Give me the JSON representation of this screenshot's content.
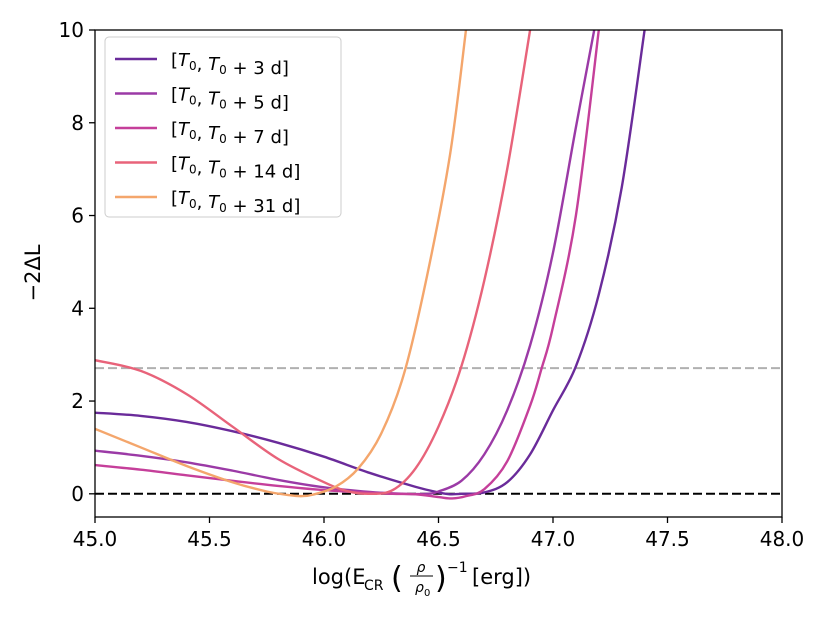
{
  "chart_data": {
    "type": "line",
    "title": "",
    "xlabel_parts": {
      "prefix": "log(E",
      "subscript": "CR",
      "frac_num": "ρ",
      "frac_den": "ρ",
      "frac_den_sub": "0",
      "exponent": "−1",
      "suffix": "[erg])"
    },
    "ylabel": "−2ΔL",
    "xlim": [
      45.0,
      48.0
    ],
    "ylim": [
      -0.5,
      10.0
    ],
    "xticks": [
      45.0,
      45.5,
      46.0,
      46.5,
      47.0,
      47.5,
      48.0
    ],
    "xtick_labels": [
      "45.0",
      "45.5",
      "46.0",
      "46.5",
      "47.0",
      "47.5",
      "48.0"
    ],
    "yticks": [
      0,
      2,
      4,
      6,
      8,
      10
    ],
    "ytick_labels": [
      "0",
      "2",
      "4",
      "6",
      "8",
      "10"
    ],
    "grid": false,
    "legend_position": "top-left",
    "reference_lines": [
      {
        "name": "zero",
        "y": 0,
        "color": "#000000",
        "style": "dashed"
      },
      {
        "name": "threshold",
        "y": 2.71,
        "color": "#b0b0b0",
        "style": "dashed"
      }
    ],
    "series": [
      {
        "name": "[T0, T0 + 3 d]",
        "legend": {
          "t": "T",
          "sub": "0",
          "rest": " + 3 d]"
        },
        "color": "#6a2b9a",
        "points": [
          [
            45.0,
            1.75
          ],
          [
            45.2,
            1.68
          ],
          [
            45.4,
            1.55
          ],
          [
            45.6,
            1.35
          ],
          [
            45.8,
            1.1
          ],
          [
            46.0,
            0.8
          ],
          [
            46.2,
            0.45
          ],
          [
            46.4,
            0.15
          ],
          [
            46.5,
            0.03
          ],
          [
            46.55,
            -0.01
          ],
          [
            46.6,
            0.0
          ],
          [
            46.7,
            0.03
          ],
          [
            46.8,
            0.25
          ],
          [
            46.9,
            0.85
          ],
          [
            47.0,
            1.8
          ],
          [
            47.1,
            2.75
          ],
          [
            47.2,
            4.3
          ],
          [
            47.3,
            6.6
          ],
          [
            47.4,
            10.0
          ]
        ]
      },
      {
        "name": "[T0, T0 + 5 d]",
        "legend": {
          "t": "T",
          "sub": "0",
          "rest": " + 5 d]"
        },
        "color": "#9b3aa6",
        "points": [
          [
            45.0,
            0.93
          ],
          [
            45.2,
            0.82
          ],
          [
            45.4,
            0.68
          ],
          [
            45.6,
            0.5
          ],
          [
            45.8,
            0.3
          ],
          [
            46.0,
            0.14
          ],
          [
            46.2,
            0.04
          ],
          [
            46.35,
            0.0
          ],
          [
            46.45,
            0.0
          ],
          [
            46.5,
            0.05
          ],
          [
            46.6,
            0.28
          ],
          [
            46.7,
            0.85
          ],
          [
            46.8,
            1.8
          ],
          [
            46.9,
            3.2
          ],
          [
            47.0,
            5.2
          ],
          [
            47.1,
            7.9
          ],
          [
            47.18,
            10.0
          ]
        ]
      },
      {
        "name": "[T0, T0 + 7 d]",
        "legend": {
          "t": "T",
          "sub": "0",
          "rest": " + 7 d]"
        },
        "color": "#c53f9a",
        "points": [
          [
            45.0,
            0.62
          ],
          [
            45.2,
            0.52
          ],
          [
            45.4,
            0.4
          ],
          [
            45.6,
            0.28
          ],
          [
            45.8,
            0.17
          ],
          [
            46.0,
            0.08
          ],
          [
            46.2,
            0.02
          ],
          [
            46.3,
            0.0
          ],
          [
            46.4,
            -0.01
          ],
          [
            46.5,
            -0.07
          ],
          [
            46.56,
            -0.1
          ],
          [
            46.62,
            -0.05
          ],
          [
            46.7,
            0.1
          ],
          [
            46.8,
            0.7
          ],
          [
            46.9,
            1.9
          ],
          [
            46.95,
            2.7
          ],
          [
            47.0,
            3.6
          ],
          [
            47.1,
            6.0
          ],
          [
            47.2,
            10.0
          ]
        ]
      },
      {
        "name": "[T0, T0 + 14 d]",
        "legend": {
          "t": "T",
          "sub": "0",
          "rest": " + 14 d]"
        },
        "color": "#e8637a",
        "points": [
          [
            45.0,
            2.88
          ],
          [
            45.2,
            2.65
          ],
          [
            45.4,
            2.15
          ],
          [
            45.6,
            1.45
          ],
          [
            45.8,
            0.75
          ],
          [
            46.0,
            0.25
          ],
          [
            46.1,
            0.06
          ],
          [
            46.2,
            0.0
          ],
          [
            46.3,
            0.08
          ],
          [
            46.4,
            0.55
          ],
          [
            46.5,
            1.45
          ],
          [
            46.6,
            2.75
          ],
          [
            46.7,
            4.6
          ],
          [
            46.8,
            7.0
          ],
          [
            46.9,
            10.0
          ]
        ]
      },
      {
        "name": "[T0, T0 + 31 d]",
        "legend": {
          "t": "T",
          "sub": "0",
          "rest": " + 31 d]"
        },
        "color": "#f4a66c",
        "points": [
          [
            45.0,
            1.4
          ],
          [
            45.2,
            1.0
          ],
          [
            45.4,
            0.6
          ],
          [
            45.6,
            0.25
          ],
          [
            45.75,
            0.05
          ],
          [
            45.85,
            -0.03
          ],
          [
            45.9,
            -0.05
          ],
          [
            45.95,
            -0.02
          ],
          [
            46.05,
            0.15
          ],
          [
            46.15,
            0.55
          ],
          [
            46.25,
            1.3
          ],
          [
            46.35,
            2.6
          ],
          [
            46.45,
            4.7
          ],
          [
            46.55,
            7.3
          ],
          [
            46.62,
            10.0
          ]
        ]
      }
    ]
  }
}
